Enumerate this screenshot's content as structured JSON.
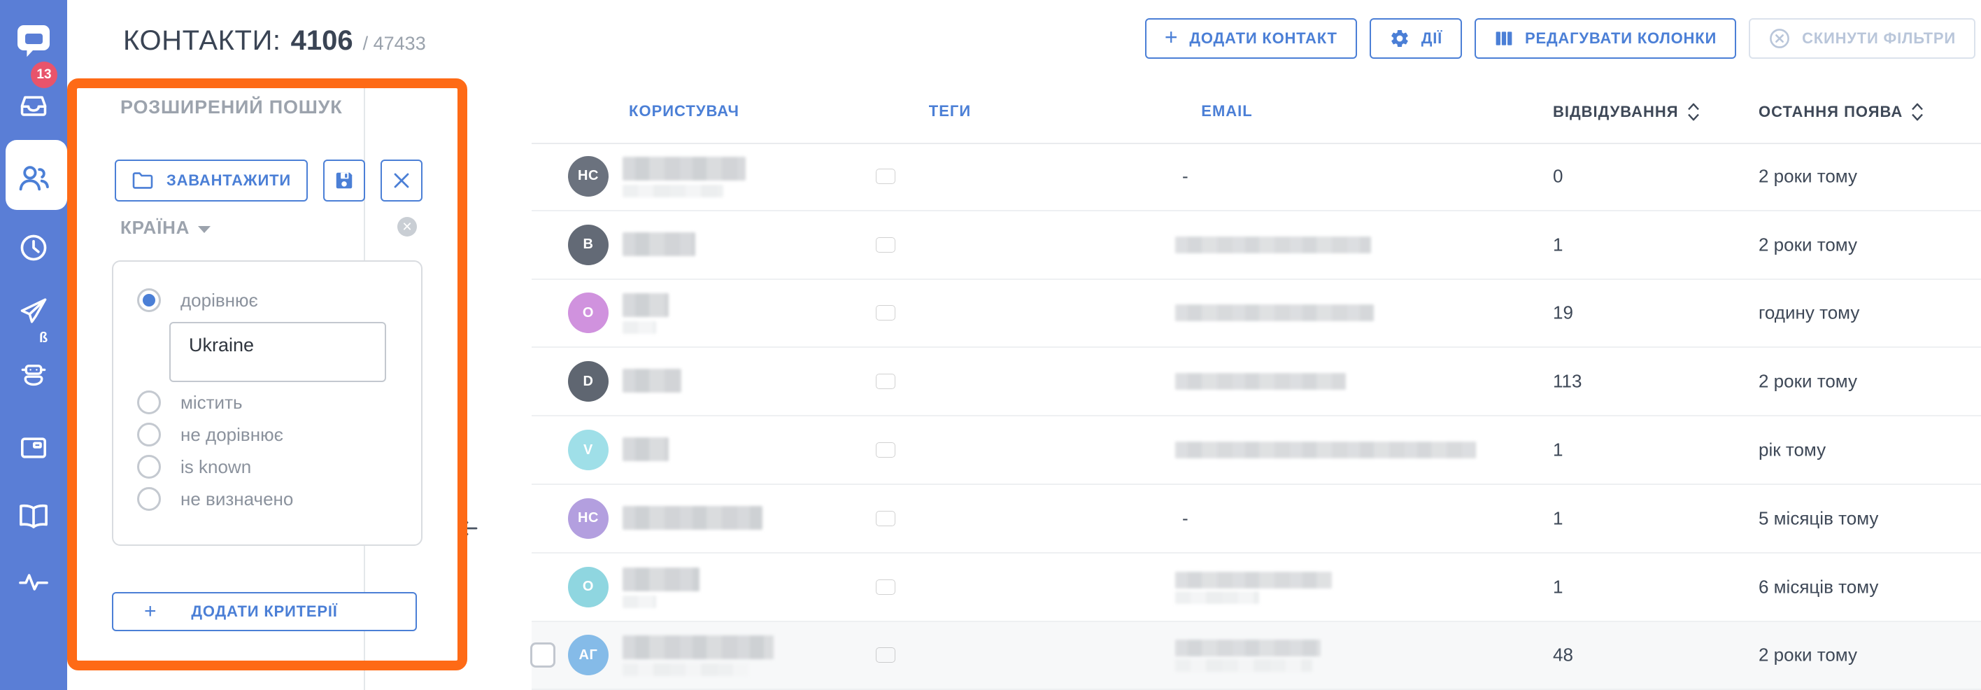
{
  "header": {
    "title_label": "КОНТАКТИ:",
    "filtered_count": "4106",
    "total_count": "/ 47433",
    "buttons": {
      "add_contact": "ДОДАТИ КОНТАКТ",
      "actions": "ДІЇ",
      "edit_columns": "РЕДАГУВАТИ КОЛОНКИ",
      "reset_filters": "СКИНУТИ ФІЛЬТРИ"
    }
  },
  "colors": {
    "accent_blue": "#4b7fd6",
    "sidebar_blue": "#5a7ed6",
    "annotation_orange": "#fe6a16",
    "badge_red": "#e8546b",
    "dark_text": "#3e4857",
    "grey_text": "#9ca3ad"
  },
  "sidebar": {
    "items": [
      {
        "id": "messenger-logo",
        "icon": "chat-logo-icon"
      },
      {
        "id": "inbox",
        "icon": "inbox-icon",
        "badge": "13"
      },
      {
        "id": "contacts",
        "icon": "contacts-icon",
        "active": true
      },
      {
        "id": "history",
        "icon": "clock-icon"
      },
      {
        "id": "campaigns",
        "icon": "send-icon"
      },
      {
        "id": "chatbot",
        "icon": "robot-icon",
        "beta": "ß"
      },
      {
        "id": "channels",
        "icon": "panel-icon"
      },
      {
        "id": "knowledge-base",
        "icon": "book-icon"
      },
      {
        "id": "activity",
        "icon": "pulse-icon"
      }
    ]
  },
  "filter_panel": {
    "title": "РОЗШИРЕНИЙ ПОШУК",
    "load_button": "ЗАВАНТАЖИТИ",
    "save_icon": "save-icon",
    "close_icon": "close-icon",
    "field": {
      "label": "КРАЇНА",
      "value": "Ukraine",
      "options": [
        {
          "label": "дорівнює",
          "selected": true,
          "has_input": true
        },
        {
          "label": "містить",
          "selected": false
        },
        {
          "label": "не дорівнює",
          "selected": false
        },
        {
          "label": "is known",
          "selected": false
        },
        {
          "label": "не визначено",
          "selected": false
        }
      ]
    },
    "add_criteria_button": "ДОДАТИ КРИТЕРІЇ"
  },
  "table": {
    "columns": [
      {
        "label": "КОРИСТУВАЧ",
        "sortable": false
      },
      {
        "label": "ТЕГИ",
        "sortable": false
      },
      {
        "label": "EMAIL",
        "sortable": false
      },
      {
        "label": "ВІДВІДУВАННЯ",
        "sortable": true
      },
      {
        "label": "ОСТАННЯ ПОЯВА",
        "sortable": true
      }
    ],
    "rows": [
      {
        "initials": "HC",
        "avatar_color": "#6b727e",
        "name_redacted_w": 88,
        "name_redacted2_w": 72,
        "tag": "ukraine-flag",
        "email": "-",
        "visits": "0",
        "last_seen": "2 роки тому"
      },
      {
        "initials": "B",
        "avatar_color": "#636a76",
        "name_redacted_w": 52,
        "tag": "ukraine-flag",
        "email_redacted_w": 140,
        "visits": "1",
        "last_seen": "2 роки тому"
      },
      {
        "initials": "O",
        "avatar_color": "#d092de",
        "name_redacted_w": 33,
        "name_redacted2_w": 24,
        "tag": "ukraine-flag",
        "email_redacted_w": 142,
        "visits": "19",
        "last_seen": "годину тому"
      },
      {
        "initials": "D",
        "avatar_color": "#5f6671",
        "name_redacted_w": 42,
        "tag": "ukraine-flag",
        "email_redacted_w": 122,
        "visits": "113",
        "last_seen": "2 роки тому"
      },
      {
        "initials": "V",
        "avatar_color": "#9fdfe8",
        "name_redacted_w": 33,
        "tag": "ukraine-flag",
        "email_redacted_w": 215,
        "visits": "1",
        "last_seen": "рік тому"
      },
      {
        "initials": "HC",
        "avatar_color": "#b39fdf",
        "name_redacted_w": 100,
        "tag": "ukraine-flag",
        "email": "-",
        "visits": "1",
        "last_seen": "5 місяців тому"
      },
      {
        "initials": "O",
        "avatar_color": "#8fd6e0",
        "name_redacted_w": 55,
        "name_redacted2_w": 24,
        "tag": "ukraine-flag",
        "email_redacted_w": 112,
        "email_redacted2_w": 60,
        "visits": "1",
        "last_seen": "6 місяців тому"
      },
      {
        "initials": "АГ",
        "avatar_color": "#85bbe8",
        "name_redacted_w": 108,
        "name_redacted2_w": 90,
        "tag": "ukraine-flag",
        "email_redacted_w": 104,
        "email_redacted2_w": 98,
        "visits": "48",
        "last_seen": "2 роки тому",
        "checkbox": true,
        "hovered": true
      }
    ]
  }
}
